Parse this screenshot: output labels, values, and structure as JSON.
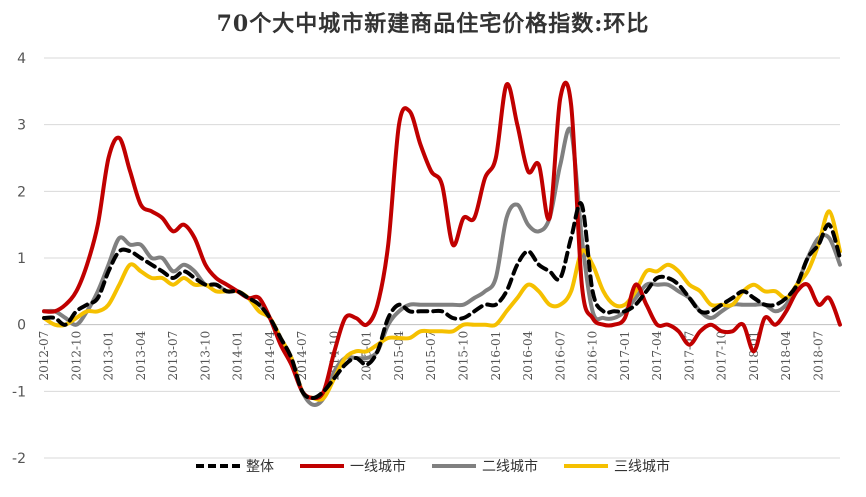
{
  "chart_data": {
    "type": "line",
    "title": "70个大中城市新建商品住宅价格指数:环比",
    "xlabel": "",
    "ylabel": "",
    "ylim": [
      -2,
      4
    ],
    "yticks": [
      -2,
      -1,
      0,
      1,
      2,
      3,
      4
    ],
    "grid": "horizontal",
    "legend_position": "bottom",
    "x_tick_labels": [
      "2012-07",
      "2012-10",
      "2013-01",
      "2013-04",
      "2013-07",
      "2013-10",
      "2014-01",
      "2014-04",
      "2014-07",
      "2014-10",
      "2015-01",
      "2015-04",
      "2015-07",
      "2015-10",
      "2016-01",
      "2016-04",
      "2016-07",
      "2016-10",
      "2017-01",
      "2017-04",
      "2017-07",
      "2017-10",
      "2018-01",
      "2018-04",
      "2018-07"
    ],
    "x": [
      "2012-07",
      "2012-08",
      "2012-09",
      "2012-10",
      "2012-11",
      "2012-12",
      "2013-01",
      "2013-02",
      "2013-03",
      "2013-04",
      "2013-05",
      "2013-06",
      "2013-07",
      "2013-08",
      "2013-09",
      "2013-10",
      "2013-11",
      "2013-12",
      "2014-01",
      "2014-02",
      "2014-03",
      "2014-04",
      "2014-05",
      "2014-06",
      "2014-07",
      "2014-08",
      "2014-09",
      "2014-10",
      "2014-11",
      "2014-12",
      "2015-01",
      "2015-02",
      "2015-03",
      "2015-04",
      "2015-05",
      "2015-06",
      "2015-07",
      "2015-08",
      "2015-09",
      "2015-10",
      "2015-11",
      "2015-12",
      "2016-01",
      "2016-02",
      "2016-03",
      "2016-04",
      "2016-05",
      "2016-06",
      "2016-07",
      "2016-08",
      "2016-09",
      "2016-10",
      "2016-11",
      "2016-12",
      "2017-01",
      "2017-02",
      "2017-03",
      "2017-04",
      "2017-05",
      "2017-06",
      "2017-07",
      "2017-08",
      "2017-09",
      "2017-10",
      "2017-11",
      "2017-12",
      "2018-01",
      "2018-02",
      "2018-03",
      "2018-04",
      "2018-05",
      "2018-06",
      "2018-07",
      "2018-08",
      "2018-09"
    ],
    "series": [
      {
        "name": "整体",
        "color": "#000000",
        "dash": "dashed",
        "values": [
          0.1,
          0.1,
          0.0,
          0.2,
          0.3,
          0.4,
          0.8,
          1.1,
          1.1,
          1.0,
          0.9,
          0.8,
          0.7,
          0.8,
          0.7,
          0.6,
          0.6,
          0.5,
          0.5,
          0.4,
          0.3,
          0.1,
          -0.2,
          -0.5,
          -1.0,
          -1.1,
          -1.0,
          -0.8,
          -0.6,
          -0.5,
          -0.6,
          -0.4,
          0.1,
          0.3,
          0.2,
          0.2,
          0.2,
          0.2,
          0.1,
          0.1,
          0.2,
          0.3,
          0.3,
          0.5,
          0.9,
          1.1,
          0.9,
          0.8,
          0.7,
          1.3,
          1.8,
          0.5,
          0.2,
          0.2,
          0.2,
          0.3,
          0.5,
          0.7,
          0.7,
          0.6,
          0.4,
          0.2,
          0.2,
          0.3,
          0.4,
          0.5,
          0.4,
          0.3,
          0.3,
          0.4,
          0.6,
          1.0,
          1.2,
          1.5,
          1.0
        ]
      },
      {
        "name": "一线城市",
        "color": "#c00000",
        "dash": "solid",
        "values": [
          0.2,
          0.2,
          0.3,
          0.5,
          0.9,
          1.5,
          2.5,
          2.8,
          2.3,
          1.8,
          1.7,
          1.6,
          1.4,
          1.5,
          1.3,
          0.9,
          0.7,
          0.6,
          0.5,
          0.4,
          0.4,
          0.1,
          -0.3,
          -0.6,
          -1.0,
          -1.1,
          -1.0,
          -0.4,
          0.1,
          0.1,
          0.0,
          0.3,
          1.2,
          3.0,
          3.2,
          2.7,
          2.3,
          2.1,
          1.2,
          1.6,
          1.6,
          2.2,
          2.5,
          3.6,
          3.0,
          2.3,
          2.4,
          1.6,
          3.4,
          3.3,
          0.6,
          0.1,
          0.0,
          0.0,
          0.1,
          0.6,
          0.3,
          0.0,
          0.0,
          -0.1,
          -0.3,
          -0.1,
          0.0,
          -0.1,
          -0.1,
          0.0,
          -0.4,
          0.1,
          0.0,
          0.2,
          0.5,
          0.6,
          0.3,
          0.4,
          0.0
        ]
      },
      {
        "name": "二线城市",
        "color": "#808080",
        "dash": "solid",
        "values": [
          0.2,
          0.2,
          0.1,
          0.0,
          0.2,
          0.5,
          0.9,
          1.3,
          1.2,
          1.2,
          1.0,
          1.0,
          0.8,
          0.9,
          0.8,
          0.6,
          0.6,
          0.5,
          0.5,
          0.4,
          0.3,
          0.1,
          -0.2,
          -0.5,
          -1.0,
          -1.2,
          -1.1,
          -0.7,
          -0.5,
          -0.5,
          -0.5,
          -0.4,
          0.0,
          0.2,
          0.3,
          0.3,
          0.3,
          0.3,
          0.3,
          0.3,
          0.4,
          0.5,
          0.7,
          1.6,
          1.8,
          1.5,
          1.4,
          1.6,
          2.4,
          2.9,
          1.3,
          0.2,
          0.1,
          0.1,
          0.2,
          0.4,
          0.6,
          0.6,
          0.6,
          0.5,
          0.4,
          0.2,
          0.1,
          0.2,
          0.3,
          0.3,
          0.3,
          0.3,
          0.2,
          0.3,
          0.6,
          1.0,
          1.3,
          1.3,
          0.9
        ]
      },
      {
        "name": "三线城市",
        "color": "#f5c000",
        "dash": "solid",
        "values": [
          0.1,
          0.0,
          0.0,
          0.1,
          0.2,
          0.2,
          0.3,
          0.6,
          0.9,
          0.8,
          0.7,
          0.7,
          0.6,
          0.7,
          0.6,
          0.6,
          0.5,
          0.5,
          0.5,
          0.4,
          0.2,
          0.1,
          -0.2,
          -0.5,
          -1.0,
          -1.1,
          -1.1,
          -0.8,
          -0.5,
          -0.4,
          -0.4,
          -0.3,
          -0.2,
          -0.2,
          -0.2,
          -0.1,
          -0.1,
          -0.1,
          -0.1,
          0.0,
          0.0,
          0.0,
          0.0,
          0.2,
          0.4,
          0.6,
          0.5,
          0.3,
          0.3,
          0.5,
          1.1,
          0.9,
          0.5,
          0.3,
          0.3,
          0.5,
          0.8,
          0.8,
          0.9,
          0.8,
          0.6,
          0.5,
          0.3,
          0.3,
          0.3,
          0.5,
          0.6,
          0.5,
          0.5,
          0.4,
          0.6,
          0.8,
          1.2,
          1.7,
          1.1
        ]
      }
    ]
  }
}
